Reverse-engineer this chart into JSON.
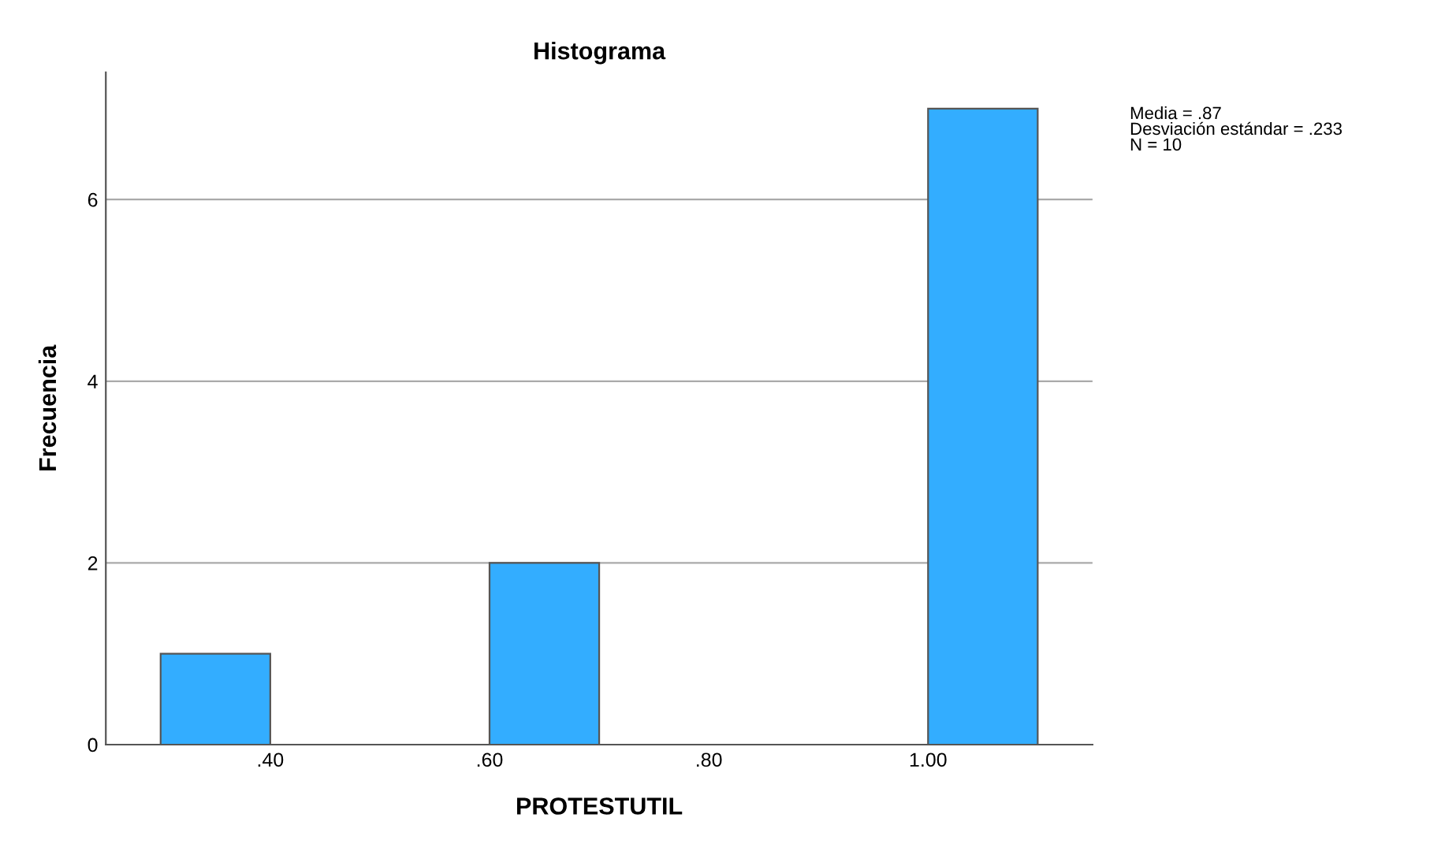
{
  "chart_data": {
    "type": "histogram",
    "title": "Histograma",
    "xlabel": "PROTESTUTIL",
    "ylabel": "Frecuencia",
    "bins": [
      0.3,
      0.4,
      0.5,
      0.6,
      0.7,
      0.8,
      0.9,
      1.0,
      1.1
    ],
    "values": [
      1,
      0,
      0,
      2,
      0,
      0,
      0,
      7
    ],
    "color": "#33adff",
    "xlim": [
      0.25,
      1.15
    ],
    "xticks": [
      {
        "value": 0.4,
        "label": ".40"
      },
      {
        "value": 0.6,
        "label": ".60"
      },
      {
        "value": 0.8,
        "label": ".80"
      },
      {
        "value": 1.0,
        "label": "1.00"
      }
    ],
    "ylim": [
      0,
      7.4
    ],
    "yticks": [
      0,
      2,
      4,
      6
    ],
    "grid": "y",
    "legend": false,
    "annotations": [
      "Media = .87\nDesviación estándar = .233\nN = 10"
    ]
  }
}
